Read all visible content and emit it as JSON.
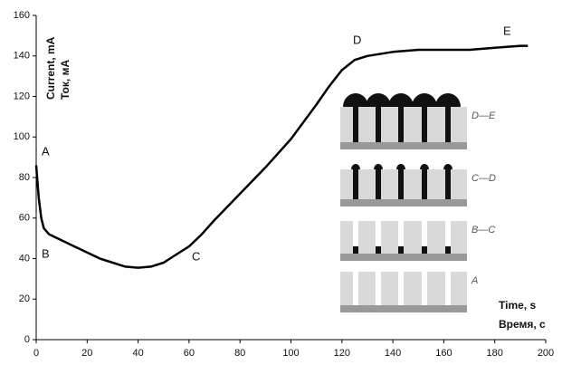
{
  "chart_data": {
    "type": "line",
    "y_labels": [
      "Current, mA",
      "Ток, мА"
    ],
    "x_labels": [
      "Time, s",
      "Время, с"
    ],
    "x": [
      0,
      1,
      2,
      3,
      5,
      10,
      15,
      20,
      25,
      30,
      35,
      40,
      45,
      50,
      55,
      60,
      65,
      70,
      80,
      90,
      100,
      110,
      115,
      120,
      125,
      130,
      140,
      150,
      160,
      170,
      180,
      190,
      193
    ],
    "series": [
      {
        "color": "#000000",
        "values": [
          86,
          70,
          60,
          55,
          52,
          49,
          46,
          43,
          40,
          38,
          36,
          35.5,
          36,
          38,
          42,
          46,
          52,
          59,
          72,
          85,
          99,
          116,
          125,
          133,
          138,
          140,
          142,
          143,
          143,
          143,
          144,
          145,
          145
        ]
      }
    ],
    "annotations": [
      "A",
      "B",
      "C",
      "D",
      "E"
    ],
    "inset_labels": [
      "D—E",
      "C—D",
      "B—C",
      "A"
    ],
    "xlim": [
      0,
      200
    ],
    "xticks": [
      0,
      20,
      40,
      60,
      80,
      100,
      120,
      140,
      160,
      180,
      200
    ],
    "ylim": [
      0,
      160
    ],
    "yticks": [
      0,
      20,
      40,
      60,
      80,
      100,
      120,
      140,
      160
    ]
  }
}
